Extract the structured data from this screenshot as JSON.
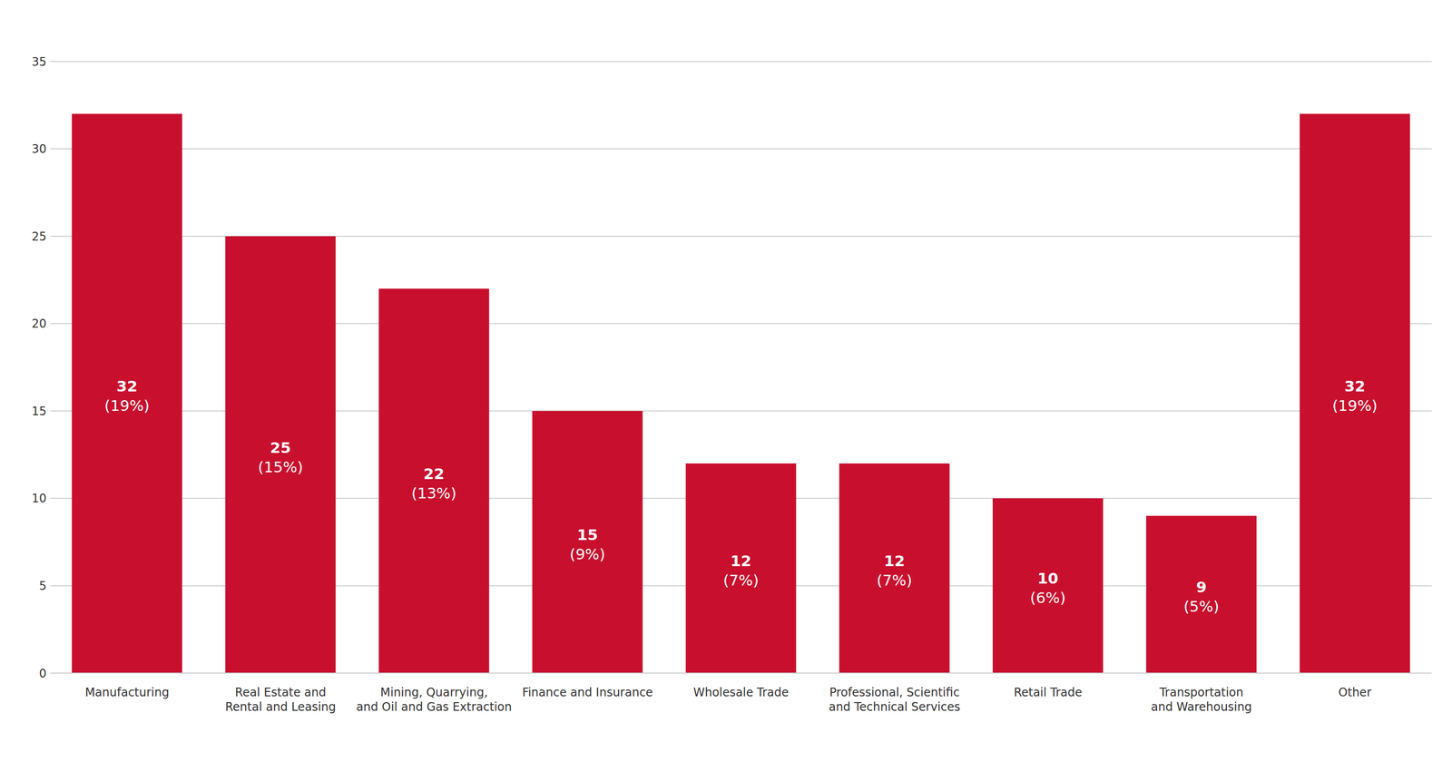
{
  "chart_data": {
    "type": "bar",
    "categories": [
      "Manufacturing",
      "Real Estate and\nRental and Leasing",
      "Mining, Quarrying,\nand Oil and Gas Extraction",
      "Finance and Insurance",
      "Wholesale Trade",
      "Professional, Scientific\nand Technical Services",
      "Retail Trade",
      "Transportation\nand Warehousing",
      "Other"
    ],
    "values": [
      32,
      25,
      22,
      15,
      12,
      12,
      10,
      9,
      32
    ],
    "share_labels": [
      "(19%)",
      "(15%)",
      "(13%)",
      "(9%)",
      "(7%)",
      "(7%)",
      "(6%)",
      "(5%)",
      "(19%)"
    ],
    "color": "#c8102e",
    "ylim": [
      0,
      35
    ],
    "yticks": [
      0,
      5,
      10,
      15,
      20,
      25,
      30,
      35
    ],
    "grid": true,
    "data_labels": true
  }
}
